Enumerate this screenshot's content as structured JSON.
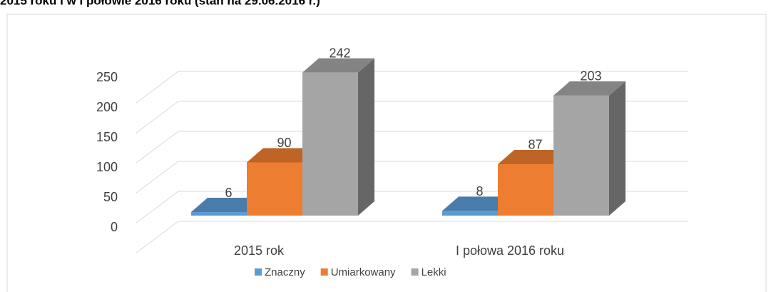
{
  "chart_data": {
    "type": "bar3d",
    "title": "2015 roku i w I połowie 2016 roku (stan na 29.06.2016 r.)",
    "categories": [
      "2015 rok",
      "I połowa 2016 roku"
    ],
    "series": [
      {
        "name": "Znaczny",
        "color": "#5b9bd5",
        "values": [
          6,
          8
        ]
      },
      {
        "name": "Umiarkowany",
        "color": "#ed7d31",
        "values": [
          90,
          87
        ]
      },
      {
        "name": "Lekki",
        "color": "#a5a5a5",
        "values": [
          242,
          203
        ]
      }
    ],
    "ylim": [
      0,
      250
    ],
    "yticks": [
      0,
      50,
      100,
      150,
      200,
      250
    ],
    "grid": true,
    "legend": "bottom"
  }
}
